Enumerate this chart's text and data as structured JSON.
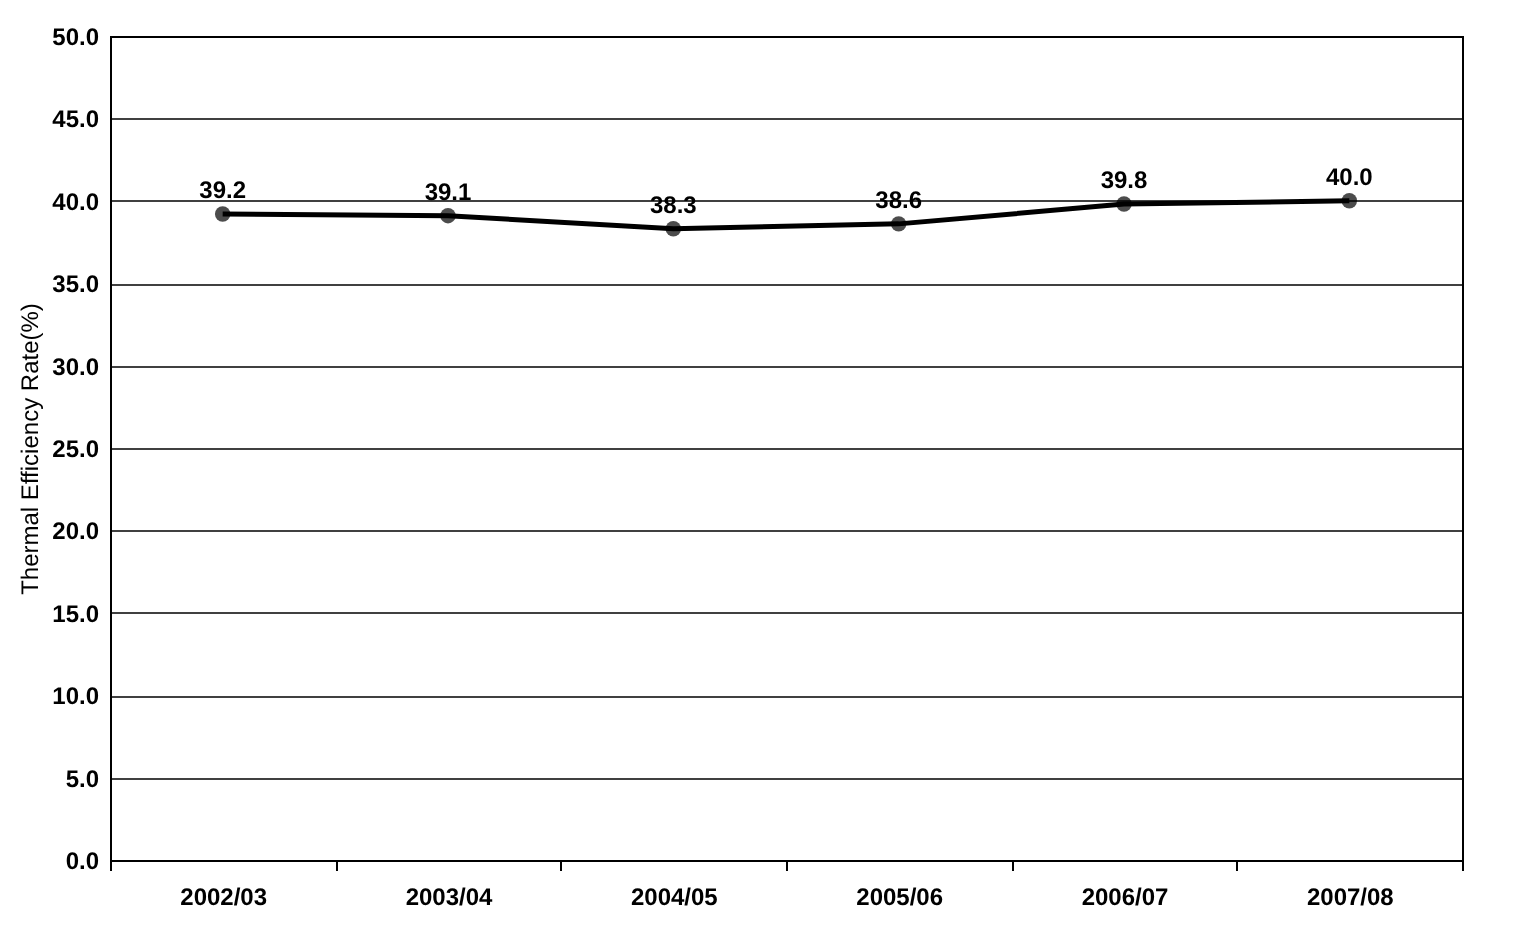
{
  "chart_data": {
    "type": "line",
    "ylabel": "Thermal Efficiency Rate(%)",
    "categories": [
      "2002/03",
      "2003/04",
      "2004/05",
      "2005/06",
      "2006/07",
      "2007/08"
    ],
    "series": [
      {
        "color": "#000000",
        "values": [
          39.2,
          39.1,
          38.3,
          38.6,
          39.8,
          40.0
        ],
        "value_labels": [
          "39.2",
          "39.1",
          "38.3",
          "38.6",
          "39.8",
          "40.0"
        ]
      }
    ],
    "ylim": [
      0,
      50
    ],
    "yticks": [
      {
        "value": 0,
        "label": "0.0"
      },
      {
        "value": 5,
        "label": "5.0"
      },
      {
        "value": 10,
        "label": "10.0"
      },
      {
        "value": 15,
        "label": "15.0"
      },
      {
        "value": 20,
        "label": "20.0"
      },
      {
        "value": 25,
        "label": "25.0"
      },
      {
        "value": 30,
        "label": "30.0"
      },
      {
        "value": 35,
        "label": "35.0"
      },
      {
        "value": 40,
        "label": "40.0"
      },
      {
        "value": 45,
        "label": "45.0"
      },
      {
        "value": 50,
        "label": "50.0"
      }
    ],
    "grid": "y",
    "marker": "circle",
    "line_style": "solid"
  }
}
